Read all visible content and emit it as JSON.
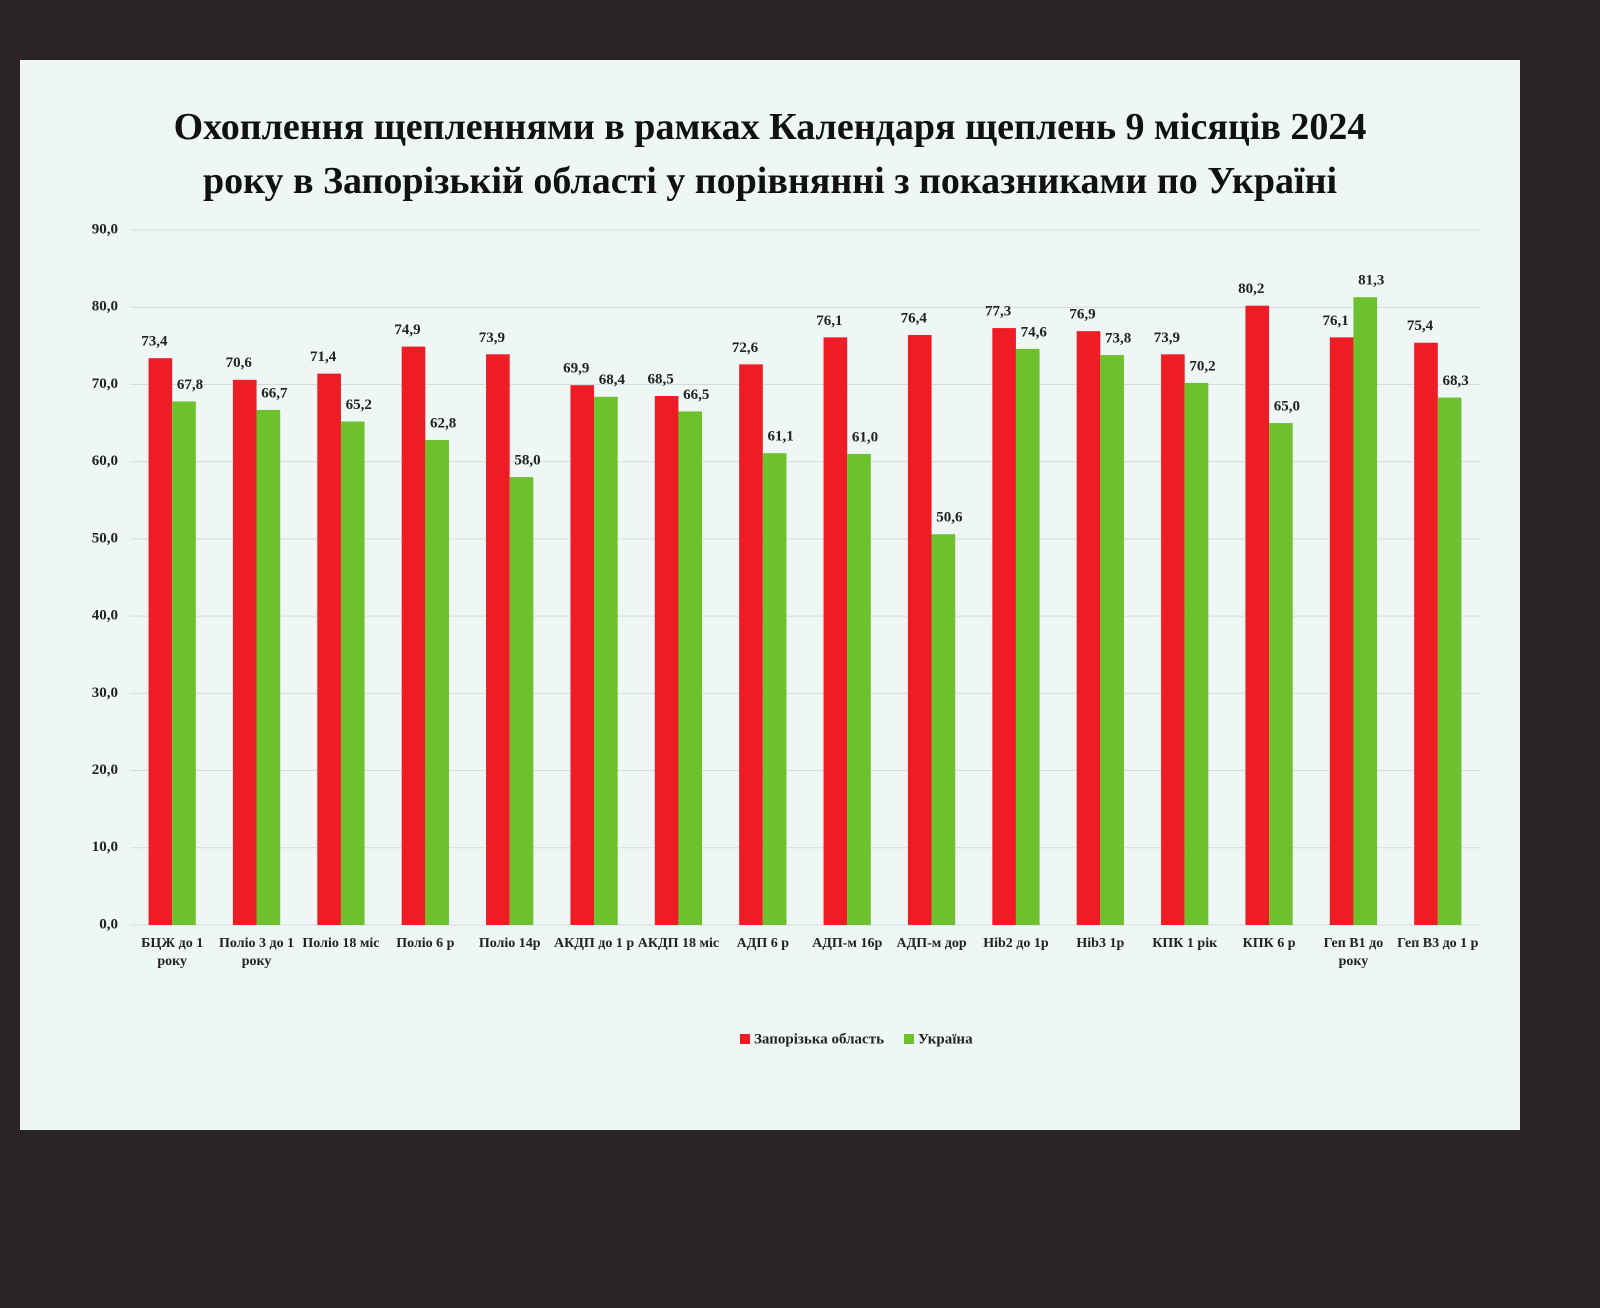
{
  "chart_data": {
    "type": "bar",
    "title": "Охоплення щепленнями в рамках Календаря щеплень 9 місяців 2024 року в Запорізькій області у порівнянні з показниками по Україні",
    "categories": [
      "БЦЖ до 1 року",
      "Поліо 3 до 1 року",
      "Поліо 18 міс",
      "Поліо 6 р",
      "Поліо 14р",
      "АКДП до 1 р",
      "АКДП 18 міс",
      "АДП 6 р",
      "АДП-м 16р",
      "АДП-м дор",
      "Hib2  до 1р",
      "Hib3 1р",
      "КПК 1 рік",
      "КПК 6 р",
      "Геп В1 до року",
      "Геп В3 до 1 р"
    ],
    "series": [
      {
        "name": "Запорізька область",
        "color": "#ee1c25",
        "values": [
          73.4,
          70.6,
          71.4,
          74.9,
          73.9,
          69.9,
          68.5,
          72.6,
          76.1,
          76.4,
          77.3,
          76.9,
          73.9,
          80.2,
          76.1,
          75.4
        ],
        "value_labels": [
          "73,4",
          "70,6",
          "71,4",
          "74,9",
          "73,9",
          "69,9",
          "68,5",
          "72,6",
          "76,1",
          "76,4",
          "77,3",
          "76,9",
          "73,9",
          "80,2",
          "76,1",
          "75,4"
        ]
      },
      {
        "name": "Україна",
        "color": "#6cc12c",
        "values": [
          67.8,
          66.7,
          65.2,
          62.8,
          58.0,
          68.4,
          66.5,
          61.1,
          61.0,
          50.6,
          74.6,
          73.8,
          70.2,
          65.0,
          81.3,
          68.3
        ],
        "value_labels": [
          "67,8",
          "66,7",
          "65,2",
          "62,8",
          "58,0",
          "68,4",
          "66,5",
          "61,1",
          "61,0",
          "50,6",
          "74,6",
          "73,8",
          "70,2",
          "65,0",
          "81,3",
          "68,3"
        ]
      }
    ],
    "ylim": [
      0,
      90
    ],
    "yticks": [
      {
        "value": 0,
        "label": "0,0"
      },
      {
        "value": 10,
        "label": "10,0"
      },
      {
        "value": 20,
        "label": "20,0"
      },
      {
        "value": 30,
        "label": "30,0"
      },
      {
        "value": 40,
        "label": "40,0"
      },
      {
        "value": 50,
        "label": "50,0"
      },
      {
        "value": 60,
        "label": "60,0"
      },
      {
        "value": 70,
        "label": "70,0"
      },
      {
        "value": 80,
        "label": "80,0"
      },
      {
        "value": 90,
        "label": "90,0"
      }
    ],
    "grid": true,
    "legend": "bottom"
  }
}
